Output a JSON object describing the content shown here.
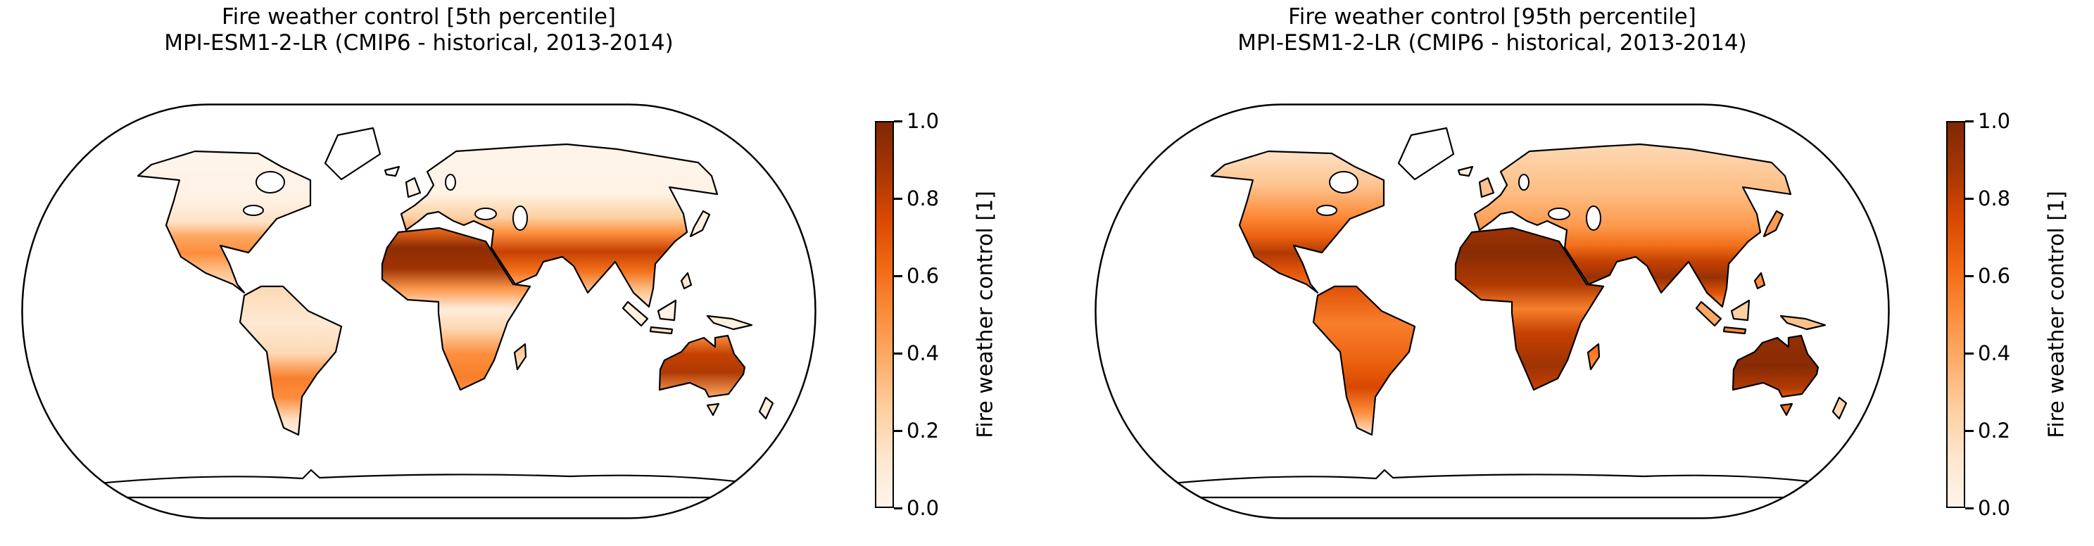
{
  "figure": {
    "background": "#ffffff",
    "colormap": {
      "name": "Oranges",
      "stops": [
        "#fff5eb",
        "#fee6ce",
        "#fdd0a2",
        "#fdae6b",
        "#fd8d3c",
        "#f16913",
        "#d94801",
        "#a63603",
        "#7f2704"
      ]
    }
  },
  "panels": [
    {
      "title_line1": "Fire weather control [5th percentile]",
      "title_line2": "MPI-ESM1-2-LR (CMIP6 - historical, 2013-2014)",
      "colorbar": {
        "label": "Fire weather control [1]",
        "min": 0.0,
        "max": 1.0,
        "ticks": [
          {
            "v": 1.0,
            "label": "1.0"
          },
          {
            "v": 0.8,
            "label": "0.8"
          },
          {
            "v": 0.6,
            "label": "0.6"
          },
          {
            "v": 0.4,
            "label": "0.4"
          },
          {
            "v": 0.2,
            "label": "0.2"
          },
          {
            "v": 0.0,
            "label": "0.0"
          }
        ]
      },
      "regions": {
        "north_america": [
          {
            "o": 0,
            "v": 0.0
          },
          {
            "o": 0.35,
            "v": 0.03
          },
          {
            "o": 0.5,
            "v": 0.15
          },
          {
            "o": 0.6,
            "v": 0.4
          },
          {
            "o": 0.72,
            "v": 0.5
          },
          {
            "o": 0.85,
            "v": 0.3
          },
          {
            "o": 1,
            "v": 0.12
          }
        ],
        "greenland": [
          {
            "o": 0,
            "v": null
          }
        ],
        "south_america": [
          {
            "o": 0,
            "v": 0.2
          },
          {
            "o": 0.25,
            "v": 0.1
          },
          {
            "o": 0.45,
            "v": 0.2
          },
          {
            "o": 0.62,
            "v": 0.55
          },
          {
            "o": 0.75,
            "v": 0.5
          },
          {
            "o": 0.9,
            "v": 0.15
          },
          {
            "o": 1,
            "v": 0.05
          }
        ],
        "africa": [
          {
            "o": 0,
            "v": 0.6
          },
          {
            "o": 0.12,
            "v": 0.95
          },
          {
            "o": 0.25,
            "v": 0.9
          },
          {
            "o": 0.38,
            "v": 0.45
          },
          {
            "o": 0.5,
            "v": 0.07
          },
          {
            "o": 0.62,
            "v": 0.2
          },
          {
            "o": 0.78,
            "v": 0.5
          },
          {
            "o": 0.93,
            "v": 0.55
          },
          {
            "o": 1,
            "v": 0.5
          }
        ],
        "eurasia": [
          {
            "o": 0,
            "v": 0.01
          },
          {
            "o": 0.3,
            "v": 0.02
          },
          {
            "o": 0.45,
            "v": 0.25
          },
          {
            "o": 0.55,
            "v": 0.5
          },
          {
            "o": 0.66,
            "v": 0.8
          },
          {
            "o": 0.78,
            "v": 0.6
          },
          {
            "o": 0.9,
            "v": 0.3
          },
          {
            "o": 1,
            "v": 0.1
          }
        ],
        "australia": [
          {
            "o": 0,
            "v": 0.5
          },
          {
            "o": 0.3,
            "v": 0.8
          },
          {
            "o": 0.6,
            "v": 0.85
          },
          {
            "o": 1,
            "v": 0.4
          }
        ],
        "madagascar": [
          {
            "o": 0,
            "v": 0.3
          },
          {
            "o": 1,
            "v": 0.15
          }
        ],
        "britain": [
          {
            "o": 0,
            "v": 0.01
          }
        ],
        "iceland": [
          {
            "o": 0,
            "v": null
          }
        ],
        "japan": [
          {
            "o": 0,
            "v": 0.05
          }
        ],
        "sumatra": [
          {
            "o": 0,
            "v": 0.05
          }
        ],
        "borneo": [
          {
            "o": 0,
            "v": 0.03
          }
        ],
        "java": [
          {
            "o": 0,
            "v": 0.15
          }
        ],
        "new_guinea": [
          {
            "o": 0,
            "v": 0.05
          }
        ],
        "philippines": [
          {
            "o": 0,
            "v": 0.1
          }
        ],
        "tasmania": [
          {
            "o": 0,
            "v": 0.15
          }
        ],
        "new_zealand": [
          {
            "o": 0,
            "v": 0.05
          }
        ],
        "antarctica": [
          {
            "o": 0,
            "v": null
          }
        ]
      }
    },
    {
      "title_line1": "Fire weather control [95th percentile]",
      "title_line2": "MPI-ESM1-2-LR (CMIP6 - historical, 2013-2014)",
      "colorbar": {
        "label": "Fire weather control [1]",
        "min": 0.0,
        "max": 1.0,
        "ticks": [
          {
            "v": 1.0,
            "label": "1.0"
          },
          {
            "v": 0.8,
            "label": "0.8"
          },
          {
            "v": 0.6,
            "label": "0.6"
          },
          {
            "v": 0.4,
            "label": "0.4"
          },
          {
            "v": 0.2,
            "label": "0.2"
          },
          {
            "v": 0.0,
            "label": "0.0"
          }
        ]
      },
      "regions": {
        "north_america": [
          {
            "o": 0,
            "v": 0.15
          },
          {
            "o": 0.25,
            "v": 0.3
          },
          {
            "o": 0.45,
            "v": 0.5
          },
          {
            "o": 0.6,
            "v": 0.65
          },
          {
            "o": 0.72,
            "v": 0.85
          },
          {
            "o": 0.85,
            "v": 0.7
          },
          {
            "o": 1,
            "v": 0.55
          }
        ],
        "greenland": [
          {
            "o": 0,
            "v": null
          }
        ],
        "south_america": [
          {
            "o": 0,
            "v": 0.72
          },
          {
            "o": 0.25,
            "v": 0.55
          },
          {
            "o": 0.5,
            "v": 0.65
          },
          {
            "o": 0.68,
            "v": 0.75
          },
          {
            "o": 0.85,
            "v": 0.5
          },
          {
            "o": 1,
            "v": 0.1
          }
        ],
        "africa": [
          {
            "o": 0,
            "v": 0.9
          },
          {
            "o": 0.15,
            "v": 0.97
          },
          {
            "o": 0.35,
            "v": 0.85
          },
          {
            "o": 0.5,
            "v": 0.55
          },
          {
            "o": 0.65,
            "v": 0.8
          },
          {
            "o": 0.85,
            "v": 0.9
          },
          {
            "o": 1,
            "v": 0.8
          }
        ],
        "eurasia": [
          {
            "o": 0,
            "v": 0.2
          },
          {
            "o": 0.3,
            "v": 0.32
          },
          {
            "o": 0.5,
            "v": 0.45
          },
          {
            "o": 0.62,
            "v": 0.6
          },
          {
            "o": 0.72,
            "v": 0.8
          },
          {
            "o": 0.82,
            "v": 0.92
          },
          {
            "o": 0.92,
            "v": 0.7
          },
          {
            "o": 1,
            "v": 0.45
          }
        ],
        "australia": [
          {
            "o": 0,
            "v": 0.93
          },
          {
            "o": 0.5,
            "v": 0.97
          },
          {
            "o": 0.85,
            "v": 0.85
          },
          {
            "o": 1,
            "v": 0.7
          }
        ],
        "madagascar": [
          {
            "o": 0,
            "v": 0.6
          },
          {
            "o": 1,
            "v": 0.5
          }
        ],
        "britain": [
          {
            "o": 0,
            "v": 0.3
          }
        ],
        "iceland": [
          {
            "o": 0,
            "v": 0.05
          }
        ],
        "japan": [
          {
            "o": 0,
            "v": 0.45
          }
        ],
        "sumatra": [
          {
            "o": 0,
            "v": 0.4
          }
        ],
        "borneo": [
          {
            "o": 0,
            "v": 0.25
          }
        ],
        "java": [
          {
            "o": 0,
            "v": 0.5
          }
        ],
        "new_guinea": [
          {
            "o": 0,
            "v": 0.3
          }
        ],
        "philippines": [
          {
            "o": 0,
            "v": 0.5
          }
        ],
        "tasmania": [
          {
            "o": 0,
            "v": 0.6
          }
        ],
        "new_zealand": [
          {
            "o": 0,
            "v": 0.2
          }
        ],
        "antarctica": [
          {
            "o": 0,
            "v": null
          }
        ]
      }
    }
  ],
  "chart_data": [
    {
      "type": "heatmap",
      "subtype": "global-map",
      "projection": "Robinson",
      "title": "Fire weather control [5th percentile]",
      "subtitle": "MPI-ESM1-2-LR (CMIP6 - historical, 2013-2014)",
      "variable": "Fire weather control",
      "units": "1",
      "percentile": "5th",
      "model": "MPI-ESM1-2-LR",
      "project": "CMIP6",
      "experiment": "historical",
      "period": "2013-2014",
      "colorbar_label": "Fire weather control [1]",
      "color_range": [
        0.0,
        1.0
      ],
      "colorbar_ticks": [
        0.0,
        0.2,
        0.4,
        0.6,
        0.8,
        1.0
      ],
      "colormap": "Oranges",
      "approx_region_values": {
        "northern_canada_alaska": 0.02,
        "western_united_states": 0.45,
        "eastern_north_america": 0.05,
        "mexico": 0.5,
        "amazon_basin": 0.15,
        "andes_argentina": 0.6,
        "patagonia": 0.1,
        "europe": 0.05,
        "sahara_sahel": 0.95,
        "central_africa": 0.07,
        "southern_africa": 0.5,
        "middle_east_arabia": 0.9,
        "central_asia_steppe": 0.45,
        "siberia": 0.02,
        "india": 0.55,
        "southeast_asia": 0.15,
        "east_asia": 0.1,
        "australia_interior": 0.85,
        "australia_coast": 0.5,
        "greenland": null,
        "antarctica": null
      }
    },
    {
      "type": "heatmap",
      "subtype": "global-map",
      "projection": "Robinson",
      "title": "Fire weather control [95th percentile]",
      "subtitle": "MPI-ESM1-2-LR (CMIP6 - historical, 2013-2014)",
      "variable": "Fire weather control",
      "units": "1",
      "percentile": "95th",
      "model": "MPI-ESM1-2-LR",
      "project": "CMIP6",
      "experiment": "historical",
      "period": "2013-2014",
      "colorbar_label": "Fire weather control [1]",
      "color_range": [
        0.0,
        1.0
      ],
      "colorbar_ticks": [
        0.0,
        0.2,
        0.4,
        0.6,
        0.8,
        1.0
      ],
      "colormap": "Oranges",
      "approx_region_values": {
        "northern_canada_alaska": 0.25,
        "western_united_states": 0.8,
        "eastern_north_america": 0.55,
        "mexico": 0.85,
        "amazon_basin": 0.65,
        "andes_argentina": 0.75,
        "patagonia": 0.15,
        "europe": 0.45,
        "sahara_sahel": 0.97,
        "central_africa": 0.55,
        "southern_africa": 0.85,
        "middle_east_arabia": 0.95,
        "central_asia_steppe": 0.5,
        "siberia": 0.25,
        "india": 0.85,
        "southeast_asia": 0.4,
        "east_asia": 0.55,
        "australia_interior": 0.97,
        "australia_coast": 0.85,
        "greenland": null,
        "antarctica": null
      }
    }
  ]
}
